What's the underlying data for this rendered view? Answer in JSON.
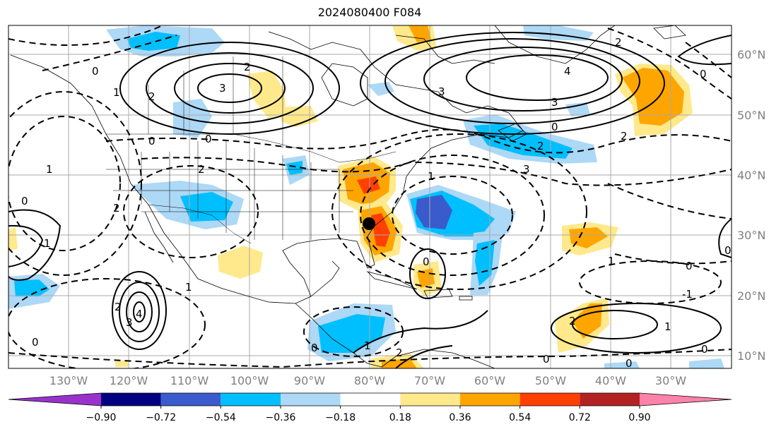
{
  "title": "2024080400 F084",
  "longitude_labels": [
    "130°W",
    "120°W",
    "110°W",
    "100°W",
    "90°W",
    "80°W",
    "70°W",
    "60°W",
    "50°W",
    "40°W",
    "30°W"
  ],
  "latitude_labels": [
    "60°N",
    "50°N",
    "40°N",
    "30°N",
    "20°N",
    "10°N"
  ],
  "colorbar": {
    "colors": [
      "#9932cc",
      "#000080",
      "#3a5bcc",
      "#00bfff",
      "#add8f6",
      "#ffffff",
      "#ffe98c",
      "#ffa500",
      "#ff4000",
      "#b22222",
      "#ff82ab"
    ],
    "tick_labels": [
      "−0.90",
      "−0.72",
      "−0.54",
      "−0.36",
      "−0.18",
      "0.18",
      "0.36",
      "0.54",
      "0.72",
      "0.90"
    ]
  },
  "contour_labels": [
    "0",
    "1",
    "2",
    "3",
    "2",
    "3",
    "4",
    "3",
    "2",
    "0",
    "2",
    "0",
    "1",
    "0",
    "1",
    "2",
    "4",
    "3",
    "2",
    "1",
    "0",
    "0",
    "2",
    "0",
    "1",
    "2",
    "2",
    "3",
    "0",
    "1",
    "0",
    "0",
    "1",
    "0",
    "-1",
    "1",
    "2",
    "0",
    "0",
    "0"
  ],
  "marker": "black-dot"
}
